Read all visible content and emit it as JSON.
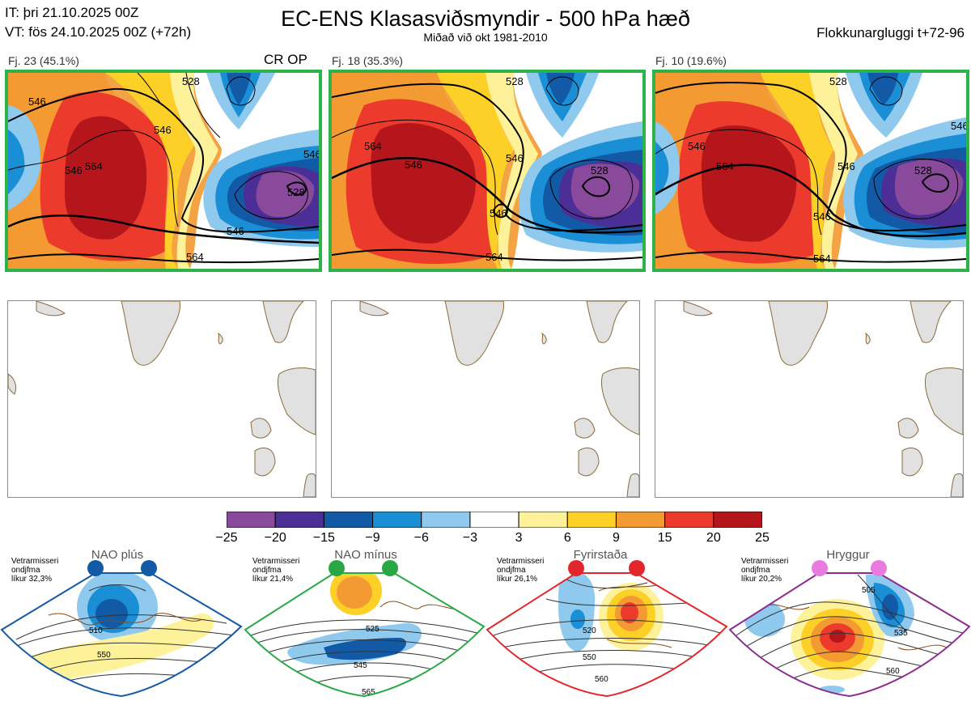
{
  "header": {
    "issue_time": "IT: þri 21.10.2025 00Z",
    "valid_time": "VT: fös 24.10.2025 00Z  (+72h)",
    "title": "EC-ENS Klasasviðsmyndir - 500 hPa hæð",
    "subtitle": "Miðað við okt 1981-2010",
    "window": "Flokkunargluggi t+72-96"
  },
  "clusters": [
    {
      "label": "Fj. 23 (45.1%)",
      "extra": "CR OP",
      "contours": [
        "546",
        "564",
        "546",
        "546",
        "528",
        "546",
        "546",
        "564",
        "528"
      ],
      "frame_color": "#2db34a"
    },
    {
      "label": "Fj. 18 (35.3%)",
      "extra": "",
      "contours": [
        "546",
        "564",
        "528",
        "546",
        "546",
        "564",
        "528"
      ],
      "frame_color": "#2db34a"
    },
    {
      "label": "Fj. 10 (19.6%)",
      "extra": "",
      "contours": [
        "546",
        "564",
        "528",
        "546",
        "546",
        "564",
        "528",
        "546"
      ],
      "frame_color": "#2db34a"
    }
  ],
  "colorbar": {
    "ticks": [
      "−25",
      "−20",
      "−15",
      "−9",
      "−6",
      "−3",
      "3",
      "6",
      "9",
      "15",
      "20",
      "25"
    ],
    "colors": [
      "#8a4a9c",
      "#4b2f96",
      "#1259a6",
      "#1a8fd6",
      "#8fcaee",
      "#ffffff",
      "#fdf29a",
      "#fdd028",
      "#f39a32",
      "#ec3a2d",
      "#b5161b"
    ]
  },
  "regimes": [
    {
      "name": "NAO plús",
      "note": [
        "Vetrarmisseri",
        "ondjfma",
        "líkur 32,3%"
      ],
      "color": "#1c5aa6",
      "contours": [
        "510",
        "550"
      ]
    },
    {
      "name": "NAO mínus",
      "note": [
        "Vetrarmisseri",
        "ondjfma",
        "líkur 21,4%"
      ],
      "color": "#27a845",
      "contours": [
        "525",
        "545",
        "565"
      ]
    },
    {
      "name": "Fyrirstaða",
      "note": [
        "Vetrarmisseri",
        "ondjfma",
        "líkur 26,1%"
      ],
      "color": "#e2262b",
      "contours": [
        "520",
        "550",
        "560"
      ]
    },
    {
      "name": "Hryggur",
      "note": [
        "Vetrarmisseri",
        "ondjfma",
        "líkur 20,2%"
      ],
      "color": "#8b2a90",
      "contours": [
        "505",
        "535",
        "560"
      ]
    }
  ]
}
